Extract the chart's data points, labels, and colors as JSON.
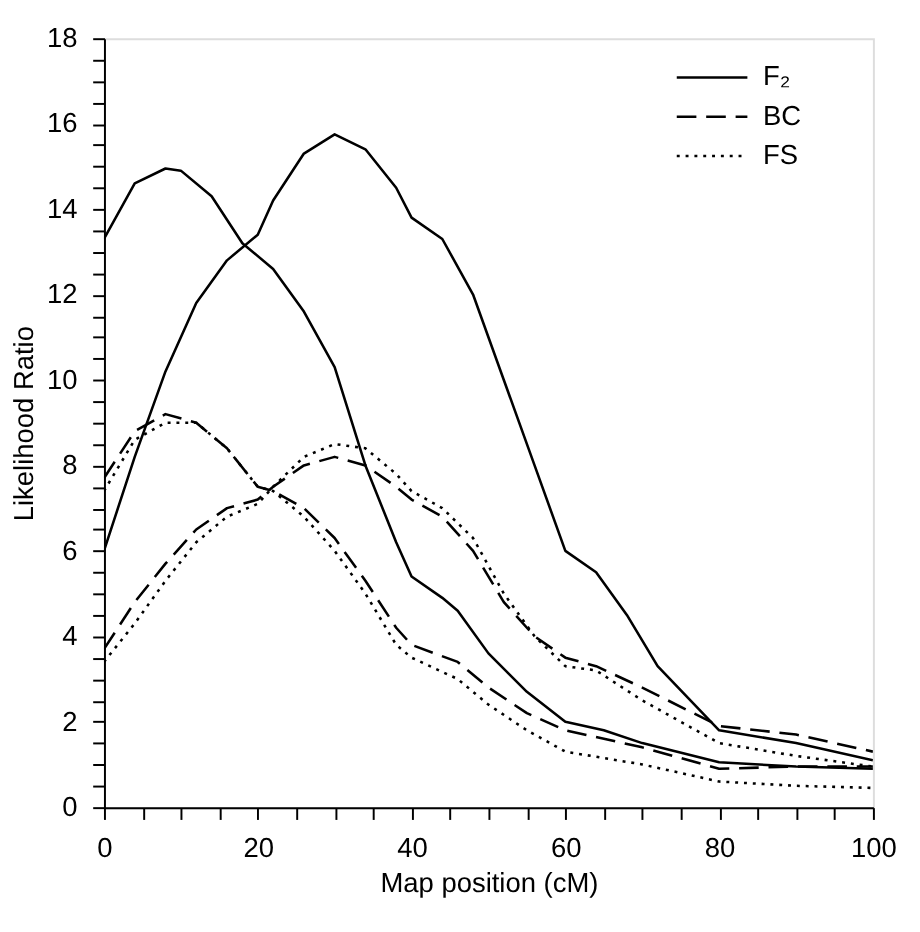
{
  "chart_data": {
    "type": "line",
    "xlabel": "Map position (cM)",
    "ylabel": "Likelihood Ratio",
    "xlim": [
      0,
      100
    ],
    "ylim": [
      0,
      18
    ],
    "xticks": [
      0,
      {
        "value": 5,
        "label": null
      },
      {
        "value": 10,
        "label": null
      },
      {
        "value": 15,
        "label": null
      },
      20,
      {
        "value": 25,
        "label": null
      },
      {
        "value": 30,
        "label": null
      },
      {
        "value": 35,
        "label": null
      },
      40,
      {
        "value": 45,
        "label": null
      },
      {
        "value": 50,
        "label": null
      },
      {
        "value": 55,
        "label": null
      },
      60,
      {
        "value": 65,
        "label": null
      },
      {
        "value": 70,
        "label": null
      },
      {
        "value": 75,
        "label": null
      },
      80,
      {
        "value": 85,
        "label": null
      },
      {
        "value": 90,
        "label": null
      },
      {
        "value": 95,
        "label": null
      },
      100
    ],
    "yticks": [
      0,
      {
        "value": 0.5,
        "label": null
      },
      {
        "value": 1,
        "label": null
      },
      {
        "value": 1.5,
        "label": null
      },
      2,
      {
        "value": 2.5,
        "label": null
      },
      {
        "value": 3,
        "label": null
      },
      {
        "value": 3.5,
        "label": null
      },
      4,
      {
        "value": 4.5,
        "label": null
      },
      {
        "value": 5,
        "label": null
      },
      {
        "value": 5.5,
        "label": null
      },
      6,
      {
        "value": 6.5,
        "label": null
      },
      {
        "value": 7,
        "label": null
      },
      {
        "value": 7.5,
        "label": null
      },
      8,
      {
        "value": 8.5,
        "label": null
      },
      {
        "value": 9,
        "label": null
      },
      {
        "value": 9.5,
        "label": null
      },
      10,
      {
        "value": 10.5,
        "label": null
      },
      {
        "value": 11,
        "label": null
      },
      {
        "value": 11.5,
        "label": null
      },
      12,
      {
        "value": 12.5,
        "label": null
      },
      {
        "value": 13,
        "label": null
      },
      {
        "value": 13.5,
        "label": null
      },
      14,
      {
        "value": 14.5,
        "label": null
      },
      {
        "value": 15,
        "label": null
      },
      {
        "value": 15.5,
        "label": null
      },
      16,
      {
        "value": 16.5,
        "label": null
      },
      {
        "value": 17,
        "label": null
      },
      {
        "value": 17.5,
        "label": null
      },
      18
    ],
    "grid": false,
    "legend": "top right",
    "series": [
      {
        "name": "F₂",
        "color": "#000000",
        "line_style": "solid",
        "x": [
          0,
          4,
          8,
          10,
          14,
          18,
          22,
          26,
          30,
          34,
          38,
          40,
          44,
          46,
          50,
          55,
          60,
          65,
          70,
          80,
          90,
          100
        ],
        "values": [
          13.3,
          14.6,
          14.95,
          14.9,
          14.3,
          13.2,
          12.6,
          11.6,
          10.3,
          8.0,
          6.2,
          5.4,
          4.9,
          4.6,
          3.6,
          2.7,
          2.0,
          1.8,
          1.5,
          1.05,
          0.95,
          0.9
        ]
      },
      {
        "color": "#000000",
        "line_style": "solid",
        "x": [
          0,
          4,
          8,
          12,
          16,
          20,
          22,
          26,
          30,
          34,
          38,
          40,
          44,
          48,
          52,
          56,
          60,
          64,
          68,
          72,
          80,
          90,
          100
        ],
        "values": [
          6.0,
          8.2,
          10.2,
          11.8,
          12.8,
          13.4,
          14.2,
          15.3,
          15.75,
          15.4,
          14.5,
          13.8,
          13.3,
          12.0,
          10.0,
          8.0,
          6.0,
          5.5,
          4.5,
          3.3,
          1.8,
          1.5,
          1.1
        ]
      },
      {
        "name": "BC",
        "color": "#000000",
        "line_style": "dashed",
        "x": [
          0,
          4,
          8,
          12,
          16,
          20,
          22,
          26,
          30,
          34,
          38,
          40,
          46,
          50,
          55,
          60,
          70,
          80,
          90,
          100
        ],
        "values": [
          7.7,
          8.8,
          9.2,
          9.0,
          8.4,
          7.5,
          7.4,
          7.0,
          6.3,
          5.3,
          4.2,
          3.8,
          3.4,
          2.8,
          2.2,
          1.8,
          1.4,
          0.9,
          0.95,
          0.95
        ]
      },
      {
        "color": "#000000",
        "line_style": "dashed",
        "x": [
          0,
          4,
          8,
          12,
          16,
          20,
          22,
          26,
          30,
          34,
          38,
          40,
          44,
          48,
          52,
          56,
          60,
          64,
          70,
          80,
          90,
          100
        ],
        "values": [
          3.7,
          4.8,
          5.7,
          6.5,
          7.0,
          7.2,
          7.5,
          8.0,
          8.2,
          8.0,
          7.5,
          7.2,
          6.8,
          6.0,
          4.8,
          4.0,
          3.5,
          3.3,
          2.8,
          1.9,
          1.7,
          1.3
        ]
      },
      {
        "name": "FS",
        "color": "#000000",
        "line_style": "dotted",
        "x": [
          0,
          4,
          8,
          12,
          16,
          20,
          22,
          26,
          30,
          34,
          38,
          40,
          46,
          50,
          55,
          60,
          70,
          80,
          90,
          100
        ],
        "values": [
          7.4,
          8.6,
          9.0,
          9.0,
          8.4,
          7.5,
          7.4,
          6.8,
          6.0,
          5.0,
          3.8,
          3.5,
          3.0,
          2.4,
          1.8,
          1.3,
          1.0,
          0.6,
          0.5,
          0.45
        ]
      },
      {
        "color": "#000000",
        "line_style": "dotted",
        "x": [
          0,
          4,
          8,
          12,
          16,
          20,
          22,
          26,
          30,
          34,
          38,
          40,
          44,
          48,
          52,
          56,
          60,
          64,
          70,
          80,
          90,
          100
        ],
        "values": [
          3.4,
          4.3,
          5.3,
          6.2,
          6.8,
          7.1,
          7.5,
          8.2,
          8.5,
          8.4,
          7.8,
          7.4,
          7.0,
          6.3,
          5.0,
          4.0,
          3.3,
          3.2,
          2.5,
          1.5,
          1.2,
          0.95
        ]
      }
    ]
  }
}
